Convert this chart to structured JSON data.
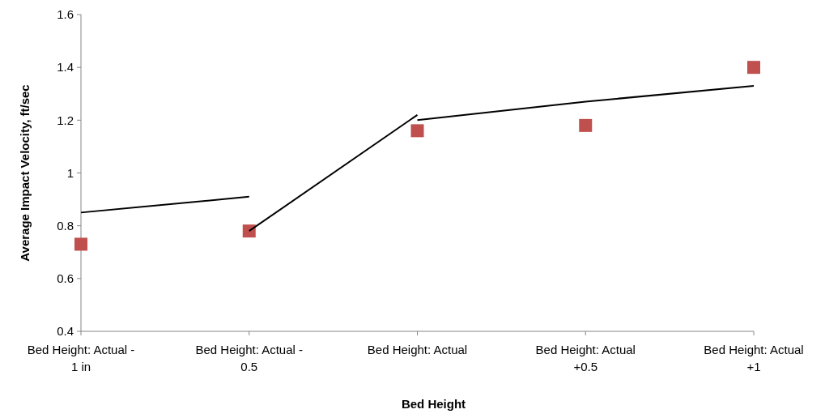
{
  "chart_data": {
    "type": "scatter",
    "xlabel": "Bed Height",
    "ylabel": "Average Impact Velocity, ft/sec",
    "categories": [
      "Bed Height: Actual - 1 in",
      "Bed Height: Actual - 0.5",
      "Bed Height: Actual",
      "Bed Height: Actual +0.5",
      "Bed Height: Actual +1"
    ],
    "series": [
      {
        "color": "#c0504d",
        "marker": "square",
        "values": [
          0.73,
          0.78,
          1.16,
          1.18,
          1.4
        ]
      },
      {
        "type": "line",
        "color": "#000000",
        "values": [
          0.85,
          0.91,
          null,
          null,
          null
        ]
      },
      {
        "type": "line",
        "color": "#000000",
        "values": [
          null,
          0.78,
          1.22,
          null,
          null
        ]
      },
      {
        "type": "line",
        "color": "#000000",
        "values": [
          null,
          null,
          1.2,
          1.27,
          1.33
        ]
      }
    ],
    "ylim": [
      0.4,
      1.6
    ],
    "yticks": [
      0.4,
      0.6,
      0.8,
      {
        "value": 1,
        "label": "1"
      },
      1.2,
      1.4,
      1.6
    ],
    "grid": false
  }
}
